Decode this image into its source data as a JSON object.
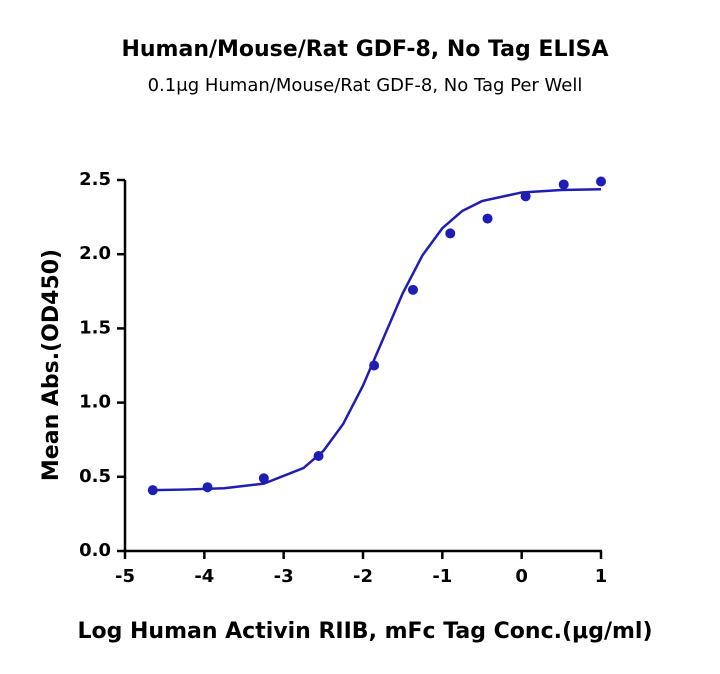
{
  "chart_data": {
    "type": "scatter",
    "title": "Human/Mouse/Rat GDF-8, No Tag ELISA",
    "subtitle": "0.1μg Human/Mouse/Rat GDF-8, No Tag Per Well",
    "x_label": "Log Human Activin RIIB, mFc Tag Conc.(μg/ml)",
    "y_label": "Mean Abs.(OD450)",
    "xlim": [
      -5,
      1
    ],
    "ylim": [
      0,
      2.5
    ],
    "xticks": [
      -5,
      -4,
      -3,
      -2,
      -1,
      0,
      1
    ],
    "yticks": [
      {
        "value": 0,
        "label": "0.0"
      },
      0.5,
      {
        "value": 1,
        "label": "1.0"
      },
      1.5,
      {
        "value": 2,
        "label": "2.0"
      },
      2.5
    ],
    "series": [
      {
        "type": "scatter",
        "color": "#1e1eb4",
        "x": [
          -4.65,
          -3.96,
          -3.25,
          -2.56,
          -1.86,
          -1.37,
          -0.9,
          -0.43,
          0.05,
          0.53,
          1.0
        ],
        "values": [
          0.41,
          0.43,
          0.49,
          0.64,
          1.25,
          1.76,
          2.14,
          2.24,
          2.39,
          2.47,
          2.49
        ]
      },
      {
        "type": "line",
        "color": "#1e1eb4",
        "x": [
          -4.65,
          -4.25,
          -3.75,
          -3.25,
          -2.75,
          -2.5,
          -2.25,
          -2,
          -1.75,
          -1.5,
          -1.25,
          -1,
          -0.75,
          -0.5,
          0,
          0.5,
          1
        ],
        "values": [
          0.41,
          0.414,
          0.423,
          0.454,
          0.559,
          0.674,
          0.856,
          1.115,
          1.425,
          1.736,
          1.993,
          2.175,
          2.291,
          2.358,
          2.416,
          2.433,
          2.438
        ]
      }
    ]
  }
}
